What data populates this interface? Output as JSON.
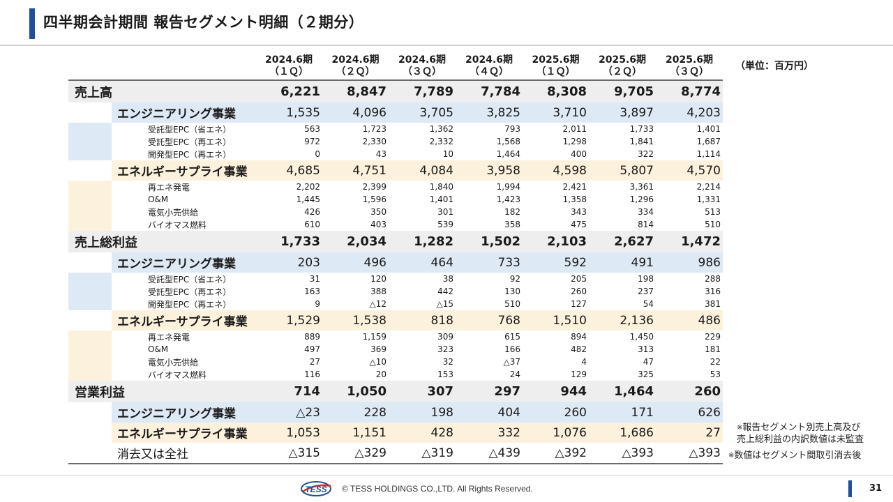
{
  "title": "四半期会計期間 報告セグメント明細（２期分）",
  "unit": "（単位：百万円）",
  "columns": [
    {
      "year": "2024.6期",
      "q": "（１Ｑ）"
    },
    {
      "year": "2024.6期",
      "q": "（２Ｑ）"
    },
    {
      "year": "2024.6期",
      "q": "（３Ｑ）"
    },
    {
      "year": "2024.6期",
      "q": "（４Ｑ）"
    },
    {
      "year": "2025.6期",
      "q": "（１Ｑ）"
    },
    {
      "year": "2025.6期",
      "q": "（２Ｑ）"
    },
    {
      "year": "2025.6期",
      "q": "（３Ｑ）"
    }
  ],
  "sections": [
    {
      "label": "売上高",
      "values": [
        "6,221",
        "8,847",
        "7,789",
        "7,784",
        "8,308",
        "9,705",
        "8,774"
      ],
      "subs": [
        {
          "label": "エンジニアリング事業",
          "values": [
            "1,535",
            "4,096",
            "3,705",
            "3,825",
            "3,710",
            "3,897",
            "4,203"
          ],
          "details": [
            {
              "label": "受託型EPC（省エネ）",
              "values": [
                "563",
                "1,723",
                "1,362",
                "793",
                "2,011",
                "1,733",
                "1,401"
              ]
            },
            {
              "label": "受託型EPC（再エネ）",
              "values": [
                "972",
                "2,330",
                "2,332",
                "1,568",
                "1,298",
                "1,841",
                "1,687"
              ]
            },
            {
              "label": "開発型EPC（再エネ）",
              "values": [
                "0",
                "43",
                "10",
                "1,464",
                "400",
                "322",
                "1,114"
              ]
            }
          ]
        },
        {
          "label": "エネルギーサプライ事業",
          "values": [
            "4,685",
            "4,751",
            "4,084",
            "3,958",
            "4,598",
            "5,807",
            "4,570"
          ],
          "details": [
            {
              "label": "再エネ発電",
              "values": [
                "2,202",
                "2,399",
                "1,840",
                "1,994",
                "2,421",
                "3,361",
                "2,214"
              ]
            },
            {
              "label": "O&M",
              "values": [
                "1,445",
                "1,596",
                "1,401",
                "1,423",
                "1,358",
                "1,296",
                "1,331"
              ]
            },
            {
              "label": "電気小売供給",
              "values": [
                "426",
                "350",
                "301",
                "182",
                "343",
                "334",
                "513"
              ]
            },
            {
              "label": "バイオマス燃料",
              "values": [
                "610",
                "403",
                "539",
                "358",
                "475",
                "814",
                "510"
              ]
            }
          ]
        }
      ]
    },
    {
      "label": "売上総利益",
      "values": [
        "1,733",
        "2,034",
        "1,282",
        "1,502",
        "2,103",
        "2,627",
        "1,472"
      ],
      "subs": [
        {
          "label": "エンジニアリング事業",
          "values": [
            "203",
            "496",
            "464",
            "733",
            "592",
            "491",
            "986"
          ],
          "details": [
            {
              "label": "受託型EPC（省エネ）",
              "values": [
                "31",
                "120",
                "38",
                "92",
                "205",
                "198",
                "288"
              ]
            },
            {
              "label": "受託型EPC（再エネ）",
              "values": [
                "163",
                "388",
                "442",
                "130",
                "260",
                "237",
                "316"
              ]
            },
            {
              "label": "開発型EPC（再エネ）",
              "values": [
                "9",
                "△12",
                "△15",
                "510",
                "127",
                "54",
                "381"
              ]
            }
          ]
        },
        {
          "label": "エネルギーサプライ事業",
          "values": [
            "1,529",
            "1,538",
            "818",
            "768",
            "1,510",
            "2,136",
            "486"
          ],
          "details": [
            {
              "label": "再エネ発電",
              "values": [
                "889",
                "1,159",
                "309",
                "615",
                "894",
                "1,450",
                "229"
              ]
            },
            {
              "label": "O&M",
              "values": [
                "497",
                "369",
                "323",
                "166",
                "482",
                "313",
                "181"
              ]
            },
            {
              "label": "電気小売供給",
              "values": [
                "27",
                "△10",
                "32",
                "△37",
                "4",
                "47",
                "22"
              ]
            },
            {
              "label": "バイオマス燃料",
              "values": [
                "116",
                "20",
                "153",
                "24",
                "129",
                "325",
                "53"
              ]
            }
          ]
        }
      ]
    },
    {
      "label": "営業利益",
      "values": [
        "714",
        "1,050",
        "307",
        "297",
        "944",
        "1,464",
        "260"
      ],
      "subs": [
        {
          "label": "エンジニアリング事業",
          "values": [
            "△23",
            "228",
            "198",
            "404",
            "260",
            "171",
            "626"
          ],
          "details": []
        },
        {
          "label": "エネルギーサプライ事業",
          "values": [
            "1,053",
            "1,151",
            "428",
            "332",
            "1,076",
            "1,686",
            "27"
          ],
          "details": []
        }
      ]
    }
  ],
  "elimination": {
    "label": "消去又は全社",
    "values": [
      "△315",
      "△329",
      "△319",
      "△439",
      "△392",
      "△393",
      "△393"
    ]
  },
  "notes": {
    "mark": "※",
    "note1_line1": "報告セグメント別売上高及び",
    "note1_line2": "売上総利益の内訳数値は未監査",
    "note2": "数値はセグメント間取引消去後"
  },
  "footer": {
    "logo_text": "TESS",
    "copyright": "© TESS HOLDINGS CO.,LTD. All Rights Reserved.",
    "page_number": "31"
  },
  "colors": {
    "accent": "#1f4e9c",
    "engineering_bg": "#dde9f5",
    "supply_bg": "#fcf1dc",
    "main_bg": "#eeeeee",
    "logo_red": "#d9262c"
  }
}
